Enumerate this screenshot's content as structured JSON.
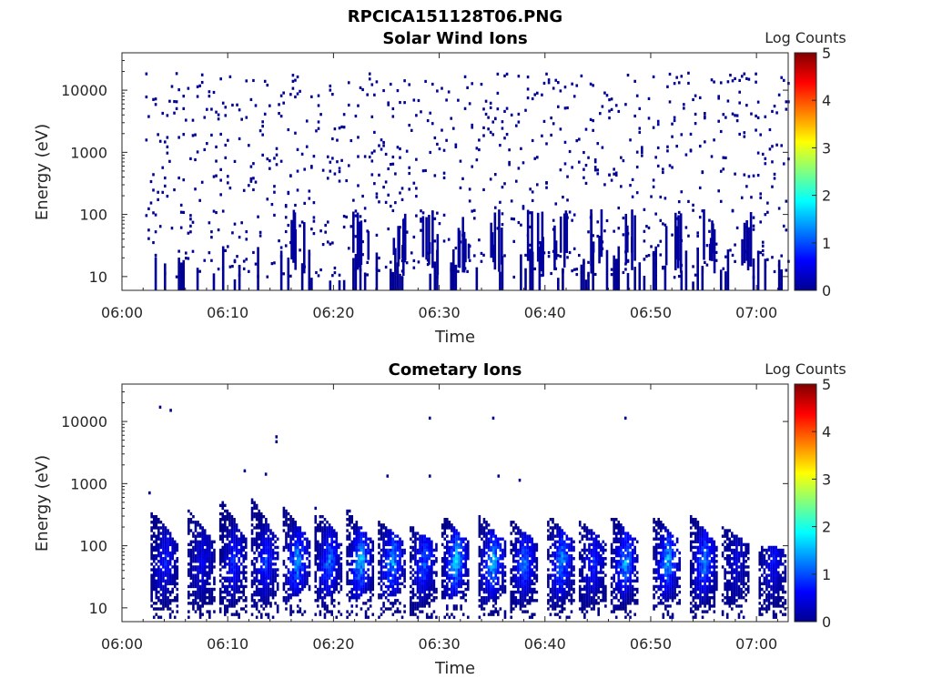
{
  "figure_title": "RPCICA151128T06.PNG",
  "chart_data": [
    {
      "type": "heatmap",
      "title": "Solar Wind Ions",
      "xlabel": "Time",
      "ylabel": "Energy (eV)",
      "y_scale": "log",
      "ylim": [
        6,
        40000
      ],
      "xlim": [
        "06:00",
        "07:03"
      ],
      "x_ticks": [
        "06:00",
        "06:10",
        "06:20",
        "06:30",
        "06:40",
        "06:50",
        "07:00"
      ],
      "y_ticks": [
        "10",
        "100",
        "1000",
        "10000"
      ],
      "colorbar": {
        "label": "Log Counts",
        "range": [
          0,
          5
        ],
        "ticks": [
          "0",
          "1",
          "2",
          "3",
          "4",
          "5"
        ],
        "colormap": "jet"
      },
      "grid": false,
      "description_of_data": "sparse isolated single-count pixels (log counts ~0) spanning 10 eV to ~30000 eV from 06:02 to 07:03, with denser vertical streaks below 100 eV",
      "streak_times_min": [
        16.5,
        22.5,
        26,
        29,
        32,
        35.5,
        39,
        41.5,
        45,
        48,
        52,
        55.5,
        59
      ]
    },
    {
      "type": "heatmap",
      "title": "Cometary Ions",
      "xlabel": "Time",
      "ylabel": "Energy (eV)",
      "y_scale": "log",
      "ylim": [
        6,
        40000
      ],
      "xlim": [
        "06:00",
        "07:03"
      ],
      "x_ticks": [
        "06:00",
        "06:10",
        "06:20",
        "06:30",
        "06:40",
        "06:50",
        "07:00"
      ],
      "y_ticks": [
        "10",
        "100",
        "1000",
        "10000"
      ],
      "colorbar": {
        "label": "Log Counts",
        "range": [
          0,
          5
        ],
        "ticks": [
          "0",
          "1",
          "2",
          "3",
          "4",
          "5"
        ],
        "colormap": "jet"
      },
      "grid": false,
      "bursts": [
        {
          "t": 4.0,
          "emax": 350,
          "emin": 6,
          "peak": 0.8
        },
        {
          "t": 7.5,
          "emax": 350,
          "emin": 6,
          "peak": 0.6
        },
        {
          "t": 10.5,
          "emax": 550,
          "emin": 10,
          "peak": 0.9
        },
        {
          "t": 13.5,
          "emax": 550,
          "emin": 10,
          "peak": 1.0
        },
        {
          "t": 16.5,
          "emax": 400,
          "emin": 15,
          "peak": 1.5
        },
        {
          "t": 19.5,
          "emax": 400,
          "emin": 15,
          "peak": 1.3
        },
        {
          "t": 22.5,
          "emax": 380,
          "emin": 15,
          "peak": 1.7
        },
        {
          "t": 25.5,
          "emax": 250,
          "emin": 15,
          "peak": 1.6
        },
        {
          "t": 28.5,
          "emax": 200,
          "emin": 6,
          "peak": 1.2
        },
        {
          "t": 31.5,
          "emax": 300,
          "emin": 15,
          "peak": 1.8
        },
        {
          "t": 35.0,
          "emax": 300,
          "emin": 12,
          "peak": 1.7
        },
        {
          "t": 38.0,
          "emax": 250,
          "emin": 6,
          "peak": 1.3
        },
        {
          "t": 41.5,
          "emax": 300,
          "emin": 10,
          "peak": 1.5
        },
        {
          "t": 44.5,
          "emax": 250,
          "emin": 6,
          "peak": 0.9
        },
        {
          "t": 47.5,
          "emax": 300,
          "emin": 6,
          "peak": 1.5
        },
        {
          "t": 51.5,
          "emax": 300,
          "emin": 12,
          "peak": 1.6
        },
        {
          "t": 55.0,
          "emax": 300,
          "emin": 6,
          "peak": 1.4
        },
        {
          "t": 58.0,
          "emax": 200,
          "emin": 12,
          "peak": 0.5
        },
        {
          "t": 61.5,
          "emax": 100,
          "emin": 6,
          "peak": 0.7
        }
      ],
      "isolated_points": [
        {
          "t": 3.5,
          "e": 18000
        },
        {
          "t": 4.5,
          "e": 16000
        },
        {
          "t": 14.5,
          "e": 6000
        },
        {
          "t": 14.5,
          "e": 5000
        },
        {
          "t": 11.5,
          "e": 1700
        },
        {
          "t": 13.5,
          "e": 1500
        },
        {
          "t": 29,
          "e": 12000
        },
        {
          "t": 35,
          "e": 12000
        },
        {
          "t": 47.5,
          "e": 12000
        },
        {
          "t": 25,
          "e": 1400
        },
        {
          "t": 29,
          "e": 1400
        },
        {
          "t": 35.5,
          "e": 1400
        },
        {
          "t": 37.5,
          "e": 1200
        },
        {
          "t": 2.5,
          "e": 750
        }
      ]
    }
  ]
}
